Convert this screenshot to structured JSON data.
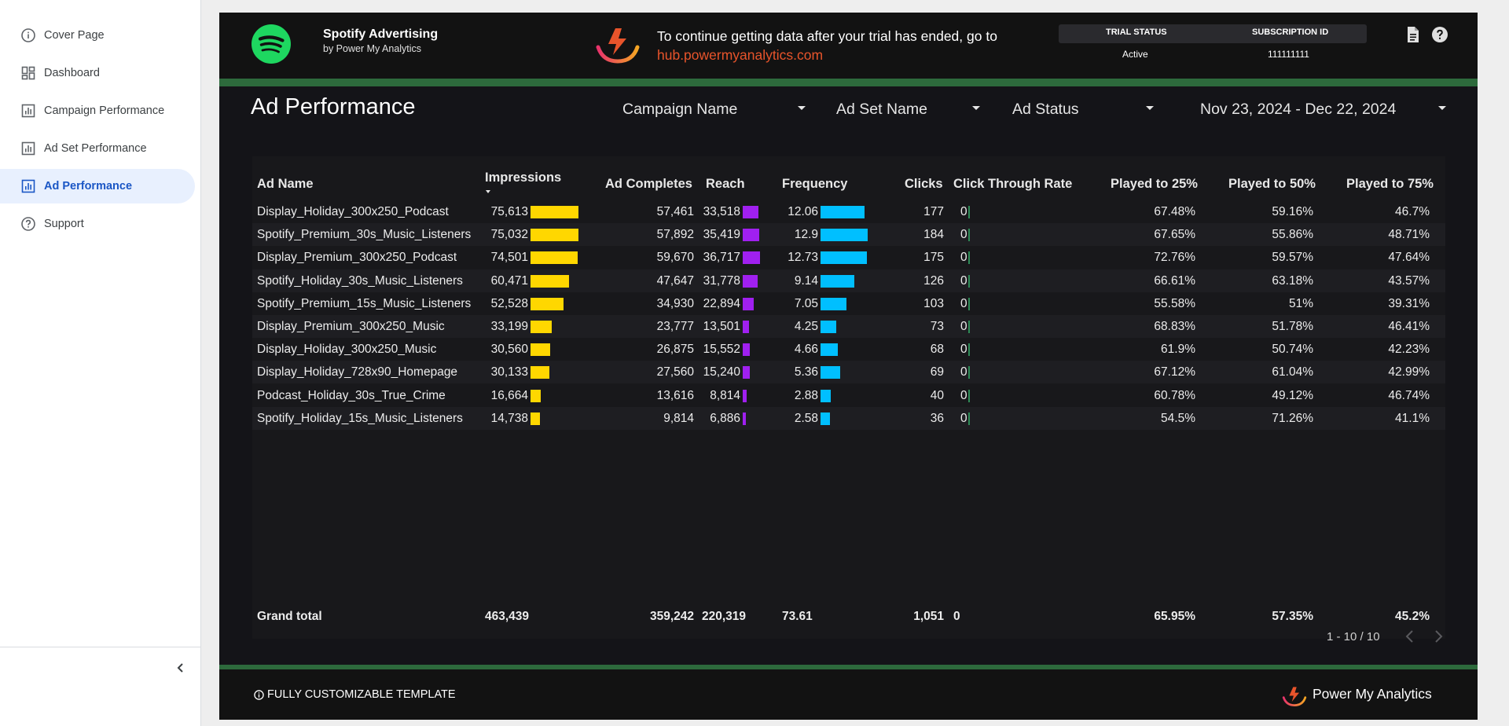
{
  "sidebar": {
    "items": [
      {
        "label": "Cover Page",
        "icon": "info-circle-icon"
      },
      {
        "label": "Dashboard",
        "icon": "dashboard-icon"
      },
      {
        "label": "Campaign Performance",
        "icon": "chart-icon"
      },
      {
        "label": "Ad Set Performance",
        "icon": "chart-icon"
      },
      {
        "label": "Ad Performance",
        "icon": "chart-icon",
        "active": true
      },
      {
        "label": "Support",
        "icon": "help-circle-icon"
      }
    ]
  },
  "header": {
    "brand_title": "Spotify Advertising",
    "brand_subtitle": "by Power My Analytics",
    "trial_message": "To continue getting data after your trial has ended, go to",
    "trial_link": "hub.powermyanalytics.com",
    "trial_status_label": "TRIAL STATUS",
    "trial_status_value": "Active",
    "subscription_label": "SUBSCRIPTION ID",
    "subscription_value": "111111111"
  },
  "page_title": "Ad Performance",
  "filters": {
    "campaign": "Campaign Name",
    "ad_set": "Ad Set Name",
    "ad_status": "Ad Status",
    "date_range": "Nov 23, 2024 - Dec 22, 2024"
  },
  "table": {
    "columns": [
      "Ad Name",
      "Impressions",
      "Ad Completes",
      "Reach",
      "Frequency",
      "Clicks",
      "Click Through Rate",
      "Played to 25%",
      "Played to 50%",
      "Played to 75%"
    ],
    "rows": [
      {
        "name": "Display_Holiday_300x250_Podcast",
        "impressions": "75,613",
        "completes": "57,461",
        "reach": "33,518",
        "frequency": "12.06",
        "clicks": "177",
        "ctr": "0",
        "p25": "67.48%",
        "p50": "59.16%",
        "p75": "46.7%"
      },
      {
        "name": "Spotify_Premium_30s_Music_Listeners",
        "impressions": "75,032",
        "completes": "57,892",
        "reach": "35,419",
        "frequency": "12.9",
        "clicks": "184",
        "ctr": "0",
        "p25": "67.65%",
        "p50": "55.86%",
        "p75": "48.71%"
      },
      {
        "name": "Display_Premium_300x250_Podcast",
        "impressions": "74,501",
        "completes": "59,670",
        "reach": "36,717",
        "frequency": "12.73",
        "clicks": "175",
        "ctr": "0",
        "p25": "72.76%",
        "p50": "59.57%",
        "p75": "47.64%"
      },
      {
        "name": "Spotify_Holiday_30s_Music_Listeners",
        "impressions": "60,471",
        "completes": "47,647",
        "reach": "31,778",
        "frequency": "9.14",
        "clicks": "126",
        "ctr": "0",
        "p25": "66.61%",
        "p50": "63.18%",
        "p75": "43.57%"
      },
      {
        "name": "Spotify_Premium_15s_Music_Listeners",
        "impressions": "52,528",
        "completes": "34,930",
        "reach": "22,894",
        "frequency": "7.05",
        "clicks": "103",
        "ctr": "0",
        "p25": "55.58%",
        "p50": "51%",
        "p75": "39.31%"
      },
      {
        "name": "Display_Premium_300x250_Music",
        "impressions": "33,199",
        "completes": "23,777",
        "reach": "13,501",
        "frequency": "4.25",
        "clicks": "73",
        "ctr": "0",
        "p25": "68.83%",
        "p50": "51.78%",
        "p75": "46.41%"
      },
      {
        "name": "Display_Holiday_300x250_Music",
        "impressions": "30,560",
        "completes": "26,875",
        "reach": "15,552",
        "frequency": "4.66",
        "clicks": "68",
        "ctr": "0",
        "p25": "61.9%",
        "p50": "50.74%",
        "p75": "42.23%"
      },
      {
        "name": "Display_Holiday_728x90_Homepage",
        "impressions": "30,133",
        "completes": "27,560",
        "reach": "15,240",
        "frequency": "5.36",
        "clicks": "69",
        "ctr": "0",
        "p25": "67.12%",
        "p50": "61.04%",
        "p75": "42.99%"
      },
      {
        "name": "Podcast_Holiday_30s_True_Crime",
        "impressions": "16,664",
        "completes": "13,616",
        "reach": "8,814",
        "frequency": "2.88",
        "clicks": "40",
        "ctr": "0",
        "p25": "60.78%",
        "p50": "49.12%",
        "p75": "46.74%"
      },
      {
        "name": "Spotify_Holiday_15s_Music_Listeners",
        "impressions": "14,738",
        "completes": "9,814",
        "reach": "6,886",
        "frequency": "2.58",
        "clicks": "36",
        "ctr": "0",
        "p25": "54.5%",
        "p50": "71.26%",
        "p75": "41.1%"
      }
    ],
    "total": {
      "label": "Grand total",
      "impressions": "463,439",
      "completes": "359,242",
      "reach": "220,319",
      "frequency": "73.61",
      "clicks": "1,051",
      "ctr": "0",
      "p25": "65.95%",
      "p50": "57.35%",
      "p75": "45.2%"
    },
    "pagination": "1 - 10 / 10"
  },
  "bar_colors": {
    "impressions": "#ffd700",
    "reach": "#a020f0",
    "frequency": "#00bfff",
    "ctr": "#2e8b57"
  },
  "footer": {
    "note": "FULLY CUSTOMIZABLE TEMPLATE",
    "brand": "Power My Analytics"
  }
}
